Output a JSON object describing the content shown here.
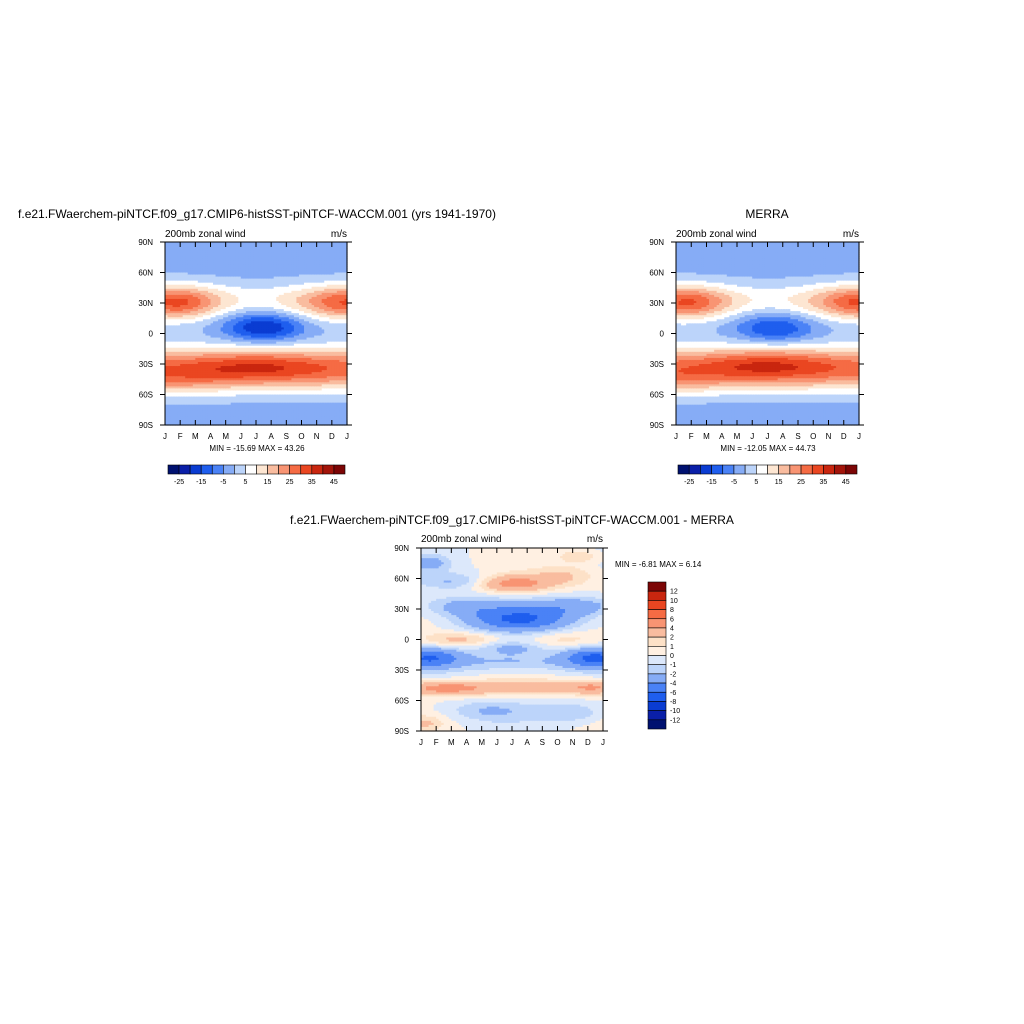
{
  "chart_data": [
    {
      "id": "model",
      "type": "heatmap",
      "title": "f.e21.FWaerchem-piNTCF.f09_g17.CMIP6-histSST-piNTCF-WACCM.001 (yrs 1941-1970)",
      "left_label": "200mb zonal wind",
      "right_label": "m/s",
      "x_ticks": [
        "J",
        "F",
        "M",
        "A",
        "M",
        "J",
        "J",
        "A",
        "S",
        "O",
        "N",
        "D",
        "J"
      ],
      "y_ticks": [
        "90N",
        "60N",
        "30N",
        "0",
        "30S",
        "60S",
        "90S"
      ],
      "xlim": [
        0,
        12
      ],
      "ylim": [
        -90,
        90
      ],
      "min_max_label": "MIN = -15.69 MAX =  43.26",
      "min": -15.69,
      "max": 43.26,
      "colorbar_orientation": "horizontal",
      "colorbar_ticks": [
        "-25",
        "-15",
        "-5",
        "5",
        "15",
        "25",
        "35",
        "45"
      ],
      "levels": [
        -25,
        -20,
        -15,
        -10,
        -5,
        0,
        5,
        10,
        15,
        20,
        25,
        30,
        35,
        40,
        45
      ],
      "features": [
        {
          "x": 1.0,
          "y": 30,
          "sx": 1.6,
          "sy": 11,
          "a": 12
        },
        {
          "x": 12.0,
          "y": 30,
          "sx": 1.8,
          "sy": 11,
          "a": 10
        },
        {
          "x": 6.0,
          "y": -33,
          "sx": 3.2,
          "sy": 11,
          "a": 10
        },
        {
          "x": 0.5,
          "y": -48,
          "sx": 2.5,
          "sy": 10,
          "a": 6
        },
        {
          "x": 6.5,
          "y": 6,
          "sx": 1.8,
          "sy": 10,
          "a": -20
        }
      ]
    },
    {
      "id": "obs",
      "type": "heatmap",
      "title": "MERRA",
      "left_label": "200mb zonal wind",
      "right_label": "m/s",
      "x_ticks": [
        "J",
        "F",
        "M",
        "A",
        "M",
        "J",
        "J",
        "A",
        "S",
        "O",
        "N",
        "D",
        "J"
      ],
      "y_ticks": [
        "90N",
        "60N",
        "30N",
        "0",
        "30S",
        "60S",
        "90S"
      ],
      "xlim": [
        0,
        12
      ],
      "ylim": [
        -90,
        90
      ],
      "min_max_label": "MIN = -12.05 MAX =  44.73",
      "min": -12.05,
      "max": 44.73,
      "colorbar_orientation": "horizontal",
      "colorbar_ticks": [
        "-25",
        "-15",
        "-5",
        "5",
        "15",
        "25",
        "35",
        "45"
      ],
      "levels": [
        -25,
        -20,
        -15,
        -10,
        -5,
        0,
        5,
        10,
        15,
        20,
        25,
        30,
        35,
        40,
        45
      ],
      "features": [
        {
          "x": 1.0,
          "y": 30,
          "sx": 1.6,
          "sy": 11,
          "a": 11
        },
        {
          "x": 12.0,
          "y": 30,
          "sx": 1.6,
          "sy": 11,
          "a": 11
        },
        {
          "x": 6.0,
          "y": -30,
          "sx": 3.0,
          "sy": 11,
          "a": 11
        },
        {
          "x": 0.4,
          "y": -48,
          "sx": 2.0,
          "sy": 9,
          "a": 5
        },
        {
          "x": 6.5,
          "y": 5,
          "sx": 1.8,
          "sy": 10,
          "a": -15
        }
      ]
    },
    {
      "id": "diff",
      "type": "heatmap",
      "title": "f.e21.FWaerchem-piNTCF.f09_g17.CMIP6-histSST-piNTCF-WACCM.001 - MERRA",
      "left_label": "200mb zonal wind",
      "right_label": "m/s",
      "x_ticks": [
        "J",
        "F",
        "M",
        "A",
        "M",
        "J",
        "J",
        "A",
        "S",
        "O",
        "N",
        "D",
        "J"
      ],
      "y_ticks": [
        "90N",
        "60N",
        "30N",
        "0",
        "30S",
        "60S",
        "90S"
      ],
      "xlim": [
        0,
        12
      ],
      "ylim": [
        -90,
        90
      ],
      "min_max_label": "MIN =  -6.81 MAX =   6.14",
      "min": -6.81,
      "max": 6.14,
      "colorbar_orientation": "vertical",
      "colorbar_ticks": [
        "12",
        "10",
        "8",
        "6",
        "4",
        "2",
        "1",
        "0",
        "-1",
        "-2",
        "-4",
        "-6",
        "-8",
        "-10",
        "-12"
      ],
      "levels": [
        -12,
        -10,
        -8,
        -6,
        -4,
        -2,
        -1,
        0,
        1,
        2,
        4,
        6,
        8,
        10,
        12
      ],
      "features": [
        {
          "x": 6.0,
          "y": 55,
          "sx": 1.8,
          "sy": 6,
          "a": 5.5
        },
        {
          "x": 2.5,
          "y": 57,
          "sx": 2.0,
          "sy": 6,
          "a": -2.5
        },
        {
          "x": 9.5,
          "y": 63,
          "sx": 1.5,
          "sy": 7,
          "a": 2.0
        },
        {
          "x": 6.5,
          "y": 20,
          "sx": 2.5,
          "sy": 9,
          "a": -6.0
        },
        {
          "x": 2.5,
          "y": 33,
          "sx": 2.0,
          "sy": 7,
          "a": -2.5
        },
        {
          "x": 10.5,
          "y": 33,
          "sx": 2.0,
          "sy": 7,
          "a": -3.0
        },
        {
          "x": 2.5,
          "y": 0,
          "sx": 1.8,
          "sy": 5,
          "a": 2.5
        },
        {
          "x": 6.0,
          "y": -8,
          "sx": 1.5,
          "sy": 5,
          "a": -2.5
        },
        {
          "x": 9.5,
          "y": 0,
          "sx": 2.0,
          "sy": 6,
          "a": 1.5
        },
        {
          "x": 0.5,
          "y": -18,
          "sx": 1.5,
          "sy": 7,
          "a": -5.5
        },
        {
          "x": 11.5,
          "y": -18,
          "sx": 1.5,
          "sy": 7,
          "a": -6.0
        },
        {
          "x": 6.0,
          "y": -22,
          "sx": 3.0,
          "sy": 7,
          "a": -2.5
        },
        {
          "x": 1.5,
          "y": -48,
          "sx": 2.0,
          "sy": 5,
          "a": 5.0
        },
        {
          "x": 7.0,
          "y": -47,
          "sx": 2.5,
          "sy": 5,
          "a": 3.0
        },
        {
          "x": 11.5,
          "y": -47,
          "sx": 1.5,
          "sy": 5,
          "a": 4.0
        },
        {
          "x": 4.5,
          "y": -70,
          "sx": 2.0,
          "sy": 7,
          "a": -2.0
        },
        {
          "x": 10.0,
          "y": -72,
          "sx": 1.5,
          "sy": 7,
          "a": -2.0
        },
        {
          "x": 0.3,
          "y": -82,
          "sx": 0.8,
          "sy": 5,
          "a": 1.8
        },
        {
          "x": 10.5,
          "y": 82,
          "sx": 1.0,
          "sy": 5,
          "a": 2.0
        },
        {
          "x": 0.5,
          "y": 75,
          "sx": 1.0,
          "sy": 5,
          "a": -2.5
        }
      ]
    }
  ],
  "colors": {
    "full_palette": [
      "#001170",
      "#0a1fa8",
      "#0a3cd2",
      "#1f5eee",
      "#4a82f6",
      "#86acf6",
      "#bcd4fa",
      "#ffffff",
      "#fde6d2",
      "#f9bc9f",
      "#f89473",
      "#f56b44",
      "#ea4621",
      "#c9260f",
      "#a3140a",
      "#7c0505"
    ],
    "diff_palette": [
      "#001170",
      "#0a1fa8",
      "#0a3cd2",
      "#1f5eee",
      "#4a82f6",
      "#86acf6",
      "#bcd4fa",
      "#dce8fb",
      "#fff0e2",
      "#fde1c7",
      "#f9bc9f",
      "#f89473",
      "#f56b44",
      "#ea4621",
      "#c9260f",
      "#7c0505"
    ]
  }
}
